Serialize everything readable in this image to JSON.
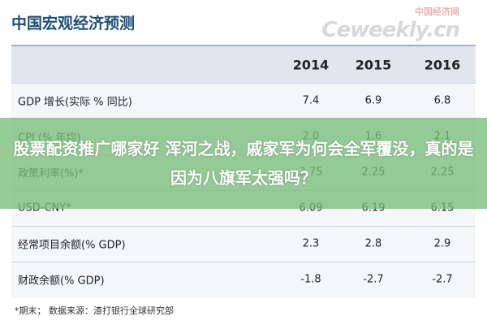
{
  "header": {
    "title": "中国宏观经济预测",
    "watermark_cn": "中国经济网",
    "watermark_en": "Ceweekly.cn"
  },
  "table": {
    "columns": [
      "2014",
      "2015",
      "2016"
    ],
    "rows": [
      [
        "GDP 增长(实际 % 同比)",
        "7.4",
        "6.9",
        "6.8"
      ],
      [
        "CPI (% 年均)",
        "2.0",
        "1.6",
        "2.1"
      ],
      [
        "政策利率(%)*",
        "2.75",
        "2.25",
        "2.25"
      ],
      [
        "USD-CNY*",
        "6.09",
        "6.19",
        "6.15"
      ],
      [
        "经常项目余额(% GDP)",
        "2.3",
        "2.8",
        "2.9"
      ],
      [
        "财政余额(% GDP)",
        "-1.8",
        "-2.7",
        "-2.7"
      ]
    ]
  },
  "footnote": "*期末；   数据来源：渣打银行全球研究部",
  "overlay": "股票配资推广哪家好 浑河之战，戚家军为何会全军覆没，真的是因为八旗军太强吗？"
}
